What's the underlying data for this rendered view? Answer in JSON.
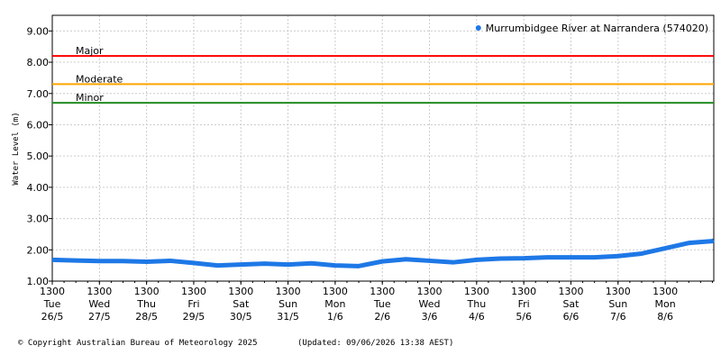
{
  "chart_data": {
    "type": "line",
    "y_label": "Water Level (m)",
    "legend_position": "top-right",
    "grid": true,
    "ylim": [
      1,
      9.5
    ],
    "yticks": [
      {
        "value": 1,
        "label": "1.00"
      },
      {
        "value": 2,
        "label": "2.00"
      },
      {
        "value": 3,
        "label": "3.00"
      },
      {
        "value": 4,
        "label": "4.00"
      },
      {
        "value": 5,
        "label": "5.00"
      },
      {
        "value": 6,
        "label": "6.00"
      },
      {
        "value": 7,
        "label": "7.00"
      },
      {
        "value": 8,
        "label": "8.00"
      },
      {
        "value": 9,
        "label": "9.00"
      }
    ],
    "xlim": [
      0,
      14.03
    ],
    "xticks": [
      {
        "value": 0,
        "label": "1300\nTue\n26/5"
      },
      {
        "value": 1,
        "label": "1300\nWed\n27/5"
      },
      {
        "value": 2,
        "label": "1300\nThu\n28/5"
      },
      {
        "value": 3,
        "label": "1300\nFri\n29/5"
      },
      {
        "value": 4,
        "label": "1300\nSat\n30/5"
      },
      {
        "value": 5,
        "label": "1300\nSun\n31/5"
      },
      {
        "value": 6,
        "label": "1300\nMon\n1/6"
      },
      {
        "value": 7,
        "label": "1300\nTue\n2/6"
      },
      {
        "value": 8,
        "label": "1300\nWed\n3/6"
      },
      {
        "value": 9,
        "label": "1300\nThu\n4/6"
      },
      {
        "value": 10,
        "label": "1300\nFri\n5/6"
      },
      {
        "value": 11,
        "label": "1300\nSat\n6/6"
      },
      {
        "value": 12,
        "label": "1300\nSun\n7/6"
      },
      {
        "value": 13,
        "label": "1300\nMon\n8/6"
      }
    ],
    "thresholds": [
      {
        "name": "Major",
        "value": 8.2,
        "color": "#ff0000"
      },
      {
        "name": "Moderate",
        "value": 7.3,
        "color": "#ffa500"
      },
      {
        "name": "Minor",
        "value": 6.7,
        "color": "#228b22"
      }
    ],
    "x": [
      0,
      0.5,
      1,
      1.5,
      2,
      2.5,
      3,
      3.5,
      4,
      4.5,
      5,
      5.5,
      6,
      6.5,
      7,
      7.5,
      8,
      8.5,
      9,
      9.5,
      10,
      10.5,
      11,
      11.5,
      12,
      12.5,
      13,
      13.5,
      14,
      14.03
    ],
    "series": [
      {
        "name": "Murrumbidgee River at Narrandera (574020)",
        "color": "#1e78e6",
        "values": [
          1.68,
          1.66,
          1.64,
          1.64,
          1.62,
          1.65,
          1.58,
          1.5,
          1.53,
          1.56,
          1.53,
          1.57,
          1.5,
          1.48,
          1.63,
          1.7,
          1.65,
          1.6,
          1.68,
          1.72,
          1.73,
          1.76,
          1.76,
          1.76,
          1.8,
          1.88,
          2.05,
          2.22,
          2.28,
          2.3
        ]
      }
    ],
    "copyright": "© Copyright Australian Bureau of Meteorology 2025",
    "updated": "(Updated: 09/06/2026 13:38 AEST)"
  }
}
